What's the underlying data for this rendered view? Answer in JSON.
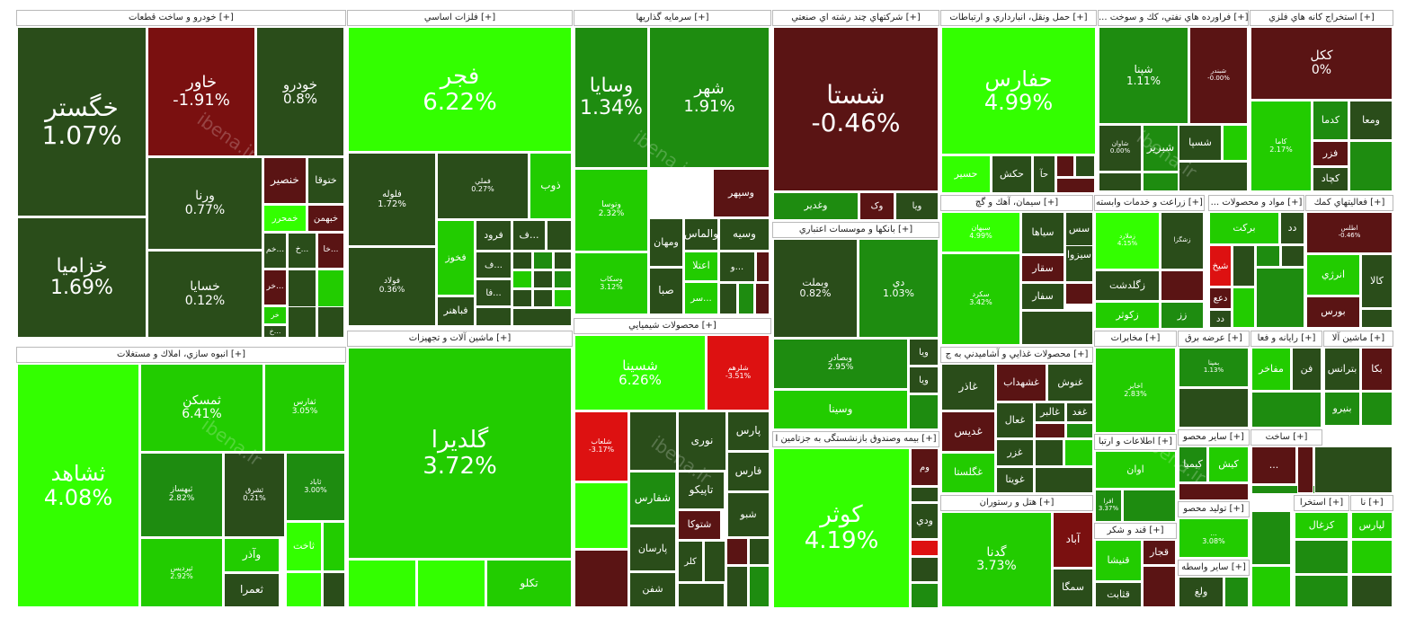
{
  "watermark": "ibena.ir",
  "colors": {
    "up_strong": "#33ff00",
    "up_medium": "#22cc00",
    "up_weak": "#1e8c10",
    "up_dim": "#115511",
    "neutral": "#2a4d1a",
    "down_weak": "#5a1414",
    "down_medium": "#7a1010",
    "down_strong": "#dd1111"
  },
  "chart_data": {
    "type": "treemap",
    "title": "",
    "sectors": [
      {
        "name": "خودرو و ساخت قطعات [+]",
        "symbols": [
          {
            "symbol": "خگستر",
            "change": "1.07%"
          },
          {
            "symbol": "خزامیا",
            "change": "1.69%"
          },
          {
            "symbol": "خاور",
            "change": "-1.91%"
          },
          {
            "symbol": "خودرو",
            "change": "0.8%"
          },
          {
            "symbol": "ورنا",
            "change": "0.77%"
          },
          {
            "symbol": "خسایا",
            "change": "0.12%"
          },
          {
            "symbol": "خنصیر",
            "change": ""
          },
          {
            "symbol": "ختوقا",
            "change": ""
          },
          {
            "symbol": "خمحرر",
            "change": ""
          },
          {
            "symbol": "خبهمن",
            "change": ""
          },
          {
            "symbol": "خم...",
            "change": ""
          },
          {
            "symbol": "خ...",
            "change": ""
          },
          {
            "symbol": "خا...",
            "change": ""
          },
          {
            "symbol": "خر...",
            "change": ""
          },
          {
            "symbol": "خر",
            "change": ""
          },
          {
            "symbol": "خ...",
            "change": ""
          }
        ]
      },
      {
        "name": "فلزات اساسي [+]",
        "symbols": [
          {
            "symbol": "فجر",
            "change": "6.22%"
          },
          {
            "symbol": "فلوله",
            "change": "1.72%"
          },
          {
            "symbol": "فملي",
            "change": "0.27%"
          },
          {
            "symbol": "ذوب",
            "change": ""
          },
          {
            "symbol": "فولاد",
            "change": "0.36%"
          },
          {
            "symbol": "فخوز",
            "change": ""
          },
          {
            "symbol": "فرود",
            "change": ""
          },
          {
            "symbol": "ف...",
            "change": ""
          },
          {
            "symbol": "ف...",
            "change": ""
          },
          {
            "symbol": "فا...",
            "change": ""
          },
          {
            "symbol": "فباهنر",
            "change": ""
          }
        ]
      },
      {
        "name": "سرمايه گذاريها [+]",
        "symbols": [
          {
            "symbol": "وسايا",
            "change": "1.34%"
          },
          {
            "symbol": "شهر",
            "change": "1.91%"
          },
          {
            "symbol": "وتوسا",
            "change": "2.32%"
          },
          {
            "symbol": "وسپهر",
            "change": ""
          },
          {
            "symbol": "والماس",
            "change": ""
          },
          {
            "symbol": "ومهان",
            "change": ""
          },
          {
            "symbol": "وسیه",
            "change": ""
          },
          {
            "symbol": "اعتلا",
            "change": ""
          },
          {
            "symbol": "صبا",
            "change": ""
          },
          {
            "symbol": "وسکاب",
            "change": "3.12%"
          },
          {
            "symbol": "سر...",
            "change": ""
          },
          {
            "symbol": "و...",
            "change": ""
          }
        ]
      },
      {
        "name": "محصولات شيميايي [+]",
        "symbols": [
          {
            "symbol": "شسینا",
            "change": "6.26%"
          },
          {
            "symbol": "شلرهم",
            "change": "-3.51%"
          },
          {
            "symbol": "شلعاب",
            "change": "-3.17%"
          },
          {
            "symbol": "پارس",
            "change": ""
          },
          {
            "symbol": "نوری",
            "change": ""
          },
          {
            "symbol": "شفارس",
            "change": ""
          },
          {
            "symbol": "تاپیکو",
            "change": ""
          },
          {
            "symbol": "فارس",
            "change": ""
          },
          {
            "symbol": "شتوکا",
            "change": ""
          },
          {
            "symbol": "شبو",
            "change": ""
          },
          {
            "symbol": "پارسان",
            "change": ""
          },
          {
            "symbol": "کلر",
            "change": ""
          },
          {
            "symbol": "شفن",
            "change": ""
          }
        ]
      },
      {
        "name": "شركتهاي چند رشته اي صنعتي [+]",
        "symbols": [
          {
            "symbol": "شستا",
            "change": "-0.46%"
          },
          {
            "symbol": "وغدیر",
            "change": ""
          },
          {
            "symbol": "وک",
            "change": ""
          },
          {
            "symbol": "ویا",
            "change": ""
          }
        ]
      },
      {
        "name": "بانكها و موسسات اعتباري [+]",
        "symbols": [
          {
            "symbol": "وبملت",
            "change": "0.82%"
          },
          {
            "symbol": "دي",
            "change": "1.03%"
          },
          {
            "symbol": "وبصادر",
            "change": "2.95%"
          },
          {
            "symbol": "وسینا",
            "change": ""
          },
          {
            "symbol": "ویا",
            "change": ""
          },
          {
            "symbol": "ویا",
            "change": ""
          }
        ]
      },
      {
        "name": "بیمه وصندوق بازنشستگی به جزتامین ا [+]",
        "symbols": [
          {
            "symbol": "کوثر",
            "change": "4.19%"
          },
          {
            "symbol": "وم",
            "change": ""
          },
          {
            "symbol": "ودي",
            "change": ""
          }
        ]
      },
      {
        "name": "حمل ونقل، انبارداري و ارتباطات [+]",
        "symbols": [
          {
            "symbol": "حفارس",
            "change": "4.99%"
          },
          {
            "symbol": "حسیر",
            "change": ""
          },
          {
            "symbol": "حکش",
            "change": ""
          },
          {
            "symbol": "حآ",
            "change": ""
          }
        ]
      },
      {
        "name": "سيمان، آهك و گچ [+]",
        "symbols": [
          {
            "symbol": "سبهان",
            "change": "4.99%"
          },
          {
            "symbol": "سکرد",
            "change": "3.42%"
          },
          {
            "symbol": "سیاها",
            "change": ""
          },
          {
            "symbol": "سقار",
            "change": ""
          },
          {
            "symbol": "سیزوا",
            "change": ""
          },
          {
            "symbol": "سفار",
            "change": ""
          },
          {
            "symbol": "سس",
            "change": ""
          }
        ]
      },
      {
        "name": "محصولات غذايي و آشاميدني به ج [+]",
        "symbols": [
          {
            "symbol": "غاذر",
            "change": ""
          },
          {
            "symbol": "غشهداب",
            "change": ""
          },
          {
            "symbol": "غنوش",
            "change": ""
          },
          {
            "symbol": "غدیس",
            "change": ""
          },
          {
            "symbol": "غگلستا",
            "change": ""
          },
          {
            "symbol": "غعال",
            "change": ""
          },
          {
            "symbol": "غالبر",
            "change": ""
          },
          {
            "symbol": "غغد",
            "change": ""
          },
          {
            "symbol": "غزر",
            "change": ""
          },
          {
            "symbol": "غویتا",
            "change": ""
          }
        ]
      },
      {
        "name": "هتل و رستوران [+]",
        "symbols": [
          {
            "symbol": "گدنا",
            "change": "3.73%"
          },
          {
            "symbol": "آباد",
            "change": ""
          },
          {
            "symbol": "سمگا",
            "change": ""
          }
        ]
      },
      {
        "name": "... فراورده هاي نفتي، كك و سوخت [+]",
        "symbols": [
          {
            "symbol": "شپنا",
            "change": "1.11%"
          },
          {
            "symbol": "شبندر",
            "change": "-0.00%"
          },
          {
            "symbol": "شسپا",
            "change": ""
          },
          {
            "symbol": "شبریز",
            "change": ""
          },
          {
            "symbol": "شاوان",
            "change": "0.00%"
          }
        ]
      },
      {
        "name": "استخراج كانه هاي فلزي [+]",
        "symbols": [
          {
            "symbol": "ككل",
            "change": "0%"
          },
          {
            "symbol": "کاما",
            "change": "2.17%"
          },
          {
            "symbol": "کدما",
            "change": ""
          },
          {
            "symbol": "ومعا",
            "change": ""
          },
          {
            "symbol": "فزر",
            "change": ""
          },
          {
            "symbol": "کچاد",
            "change": ""
          }
        ]
      },
      {
        "name": "زراعت و خدمات وابسته [+]",
        "symbols": [
          {
            "symbol": "زملارد",
            "change": "4.15%"
          },
          {
            "symbol": "زگلدشت",
            "change": ""
          },
          {
            "symbol": "زکوثر",
            "change": ""
          },
          {
            "symbol": "زشگزا",
            "change": ""
          },
          {
            "symbol": "زز",
            "change": ""
          }
        ]
      },
      {
        "name": "... مواد و محصولات [+]",
        "symbols": [
          {
            "symbol": "برکت",
            "change": ""
          },
          {
            "symbol": "دد",
            "change": ""
          },
          {
            "symbol": "شیخ",
            "change": ""
          },
          {
            "symbol": "دعع",
            "change": ""
          },
          {
            "symbol": "دد",
            "change": ""
          }
        ]
      },
      {
        "name": "فعاليتهاي كمك [+]",
        "symbols": [
          {
            "symbol": "اطلس",
            "change": "-0.46%"
          },
          {
            "symbol": "انرژي",
            "change": ""
          },
          {
            "symbol": "كالا",
            "change": ""
          },
          {
            "symbol": "بورس",
            "change": ""
          }
        ]
      },
      {
        "name": "مخابرات [+]",
        "symbols": [
          {
            "symbol": "اخابر",
            "change": "2.83%"
          }
        ]
      },
      {
        "name": "اطلاعات و ارتبا [+]",
        "symbols": [
          {
            "symbol": "اوان",
            "change": ""
          },
          {
            "symbol": "افرا",
            "change": "3.37%"
          }
        ]
      },
      {
        "name": "قند و شكر [+]",
        "symbols": [
          {
            "symbol": "قنیشا",
            "change": ""
          },
          {
            "symbol": "قجار",
            "change": ""
          },
          {
            "symbol": "قثابت",
            "change": ""
          }
        ]
      },
      {
        "name": "عرضه برق [+]",
        "symbols": [
          {
            "symbol": "بمپنا",
            "change": "1.13%"
          }
        ]
      },
      {
        "name": "رايانه و فعا [+]",
        "symbols": [
          {
            "symbol": "مفاخر",
            "change": ""
          },
          {
            "symbol": "فن",
            "change": ""
          }
        ]
      },
      {
        "name": "ماشين آلا [+]",
        "symbols": [
          {
            "symbol": "بترانس",
            "change": ""
          },
          {
            "symbol": "بکا",
            "change": ""
          },
          {
            "symbol": "بنیرو",
            "change": ""
          }
        ]
      },
      {
        "name": "ساير محصو [+]",
        "symbols": [
          {
            "symbol": "کیمیا",
            "change": ""
          },
          {
            "symbol": "کیش",
            "change": ""
          }
        ]
      },
      {
        "name": "ساخت [+]",
        "symbols": [
          {
            "symbol": "...",
            "change": ""
          }
        ]
      },
      {
        "name": "تولید محصو [+]",
        "symbols": [
          {
            "symbol": "...",
            "change": "3.08%"
          }
        ]
      },
      {
        "name": "ساير واسطه [+]",
        "symbols": [
          {
            "symbol": "ولغ",
            "change": ""
          }
        ]
      },
      {
        "name": "استخرا [+]",
        "symbols": [
          {
            "symbol": "كزغال",
            "change": ""
          }
        ]
      },
      {
        "name": "نا [+]",
        "symbols": [
          {
            "symbol": "لپارس",
            "change": ""
          }
        ]
      },
      {
        "name": "ماشين آلات و تجهيزات [+]",
        "symbols": [
          {
            "symbol": "گلديرا",
            "change": "3.72%"
          },
          {
            "symbol": "تکلو",
            "change": ""
          }
        ]
      },
      {
        "name": "انبوه سازي، املاك و مستغلات [+]",
        "symbols": [
          {
            "symbol": "ثشاهد",
            "change": "4.08%"
          },
          {
            "symbol": "ثمسكن",
            "change": "6.41%"
          },
          {
            "symbol": "ثفارس",
            "change": "3.05%"
          },
          {
            "symbol": "ثبهساز",
            "change": "2.82%"
          },
          {
            "symbol": "ثشرق",
            "change": "0.21%"
          },
          {
            "symbol": "ثاباد",
            "change": "3.00%"
          },
          {
            "symbol": "ثپردیس",
            "change": "2.92%"
          },
          {
            "symbol": "وآذر",
            "change": ""
          },
          {
            "symbol": "ثاخت",
            "change": ""
          },
          {
            "symbol": "ثعمرا",
            "change": ""
          }
        ]
      }
    ]
  }
}
